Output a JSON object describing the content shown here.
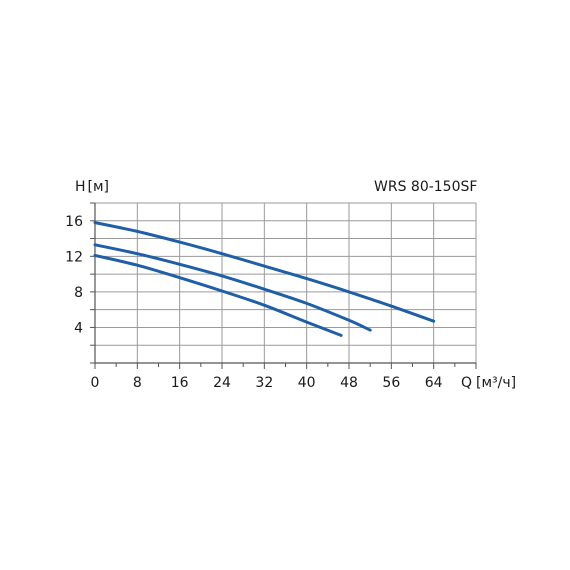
{
  "chart_data": {
    "type": "line",
    "title": "WRS 80-150SF",
    "xlabel": "Q",
    "xunit": "[м³/ч]",
    "ylabel": "H",
    "yunit": "[м]",
    "xlim": [
      0,
      72
    ],
    "ylim": [
      0,
      18
    ],
    "xticks": [
      0,
      8,
      16,
      24,
      32,
      40,
      48,
      56,
      64
    ],
    "yticks": [
      4,
      8,
      12,
      16
    ],
    "grid": true,
    "colors": {
      "series": "#1f5fa8",
      "grid": "#9a9a9a",
      "axis": "#555555"
    },
    "series": [
      {
        "x": [
          0,
          8,
          16,
          24,
          32,
          40,
          48,
          56,
          64
        ],
        "y": [
          15.8,
          14.8,
          13.6,
          12.3,
          10.9,
          9.5,
          8.0,
          6.4,
          4.7
        ]
      },
      {
        "x": [
          0,
          8,
          16,
          24,
          32,
          40,
          48,
          52
        ],
        "y": [
          13.3,
          12.3,
          11.1,
          9.8,
          8.3,
          6.7,
          4.8,
          3.7
        ]
      },
      {
        "x": [
          0,
          8,
          16,
          24,
          32,
          40,
          46.5
        ],
        "y": [
          12.1,
          11.0,
          9.6,
          8.1,
          6.5,
          4.6,
          3.1
        ]
      }
    ]
  }
}
